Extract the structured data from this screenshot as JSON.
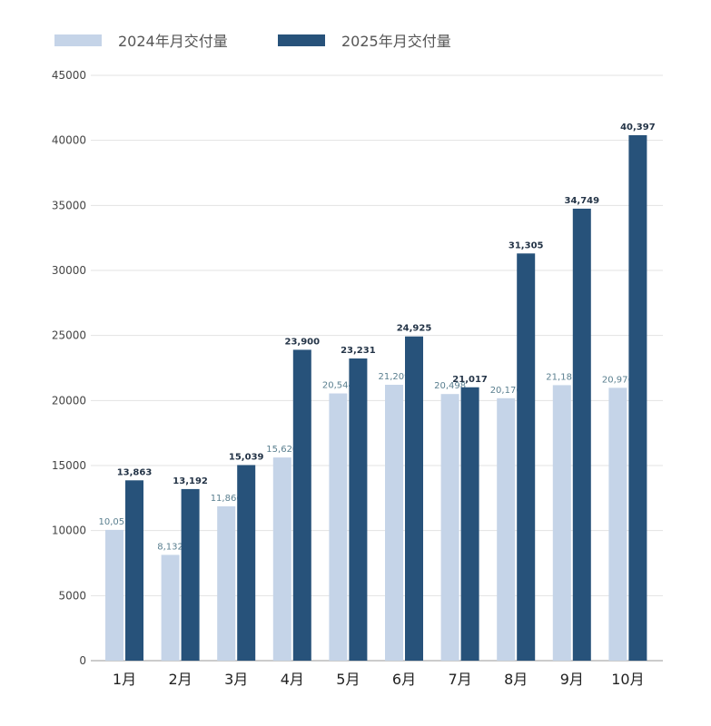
{
  "chart_data": {
    "type": "bar",
    "title": "",
    "xlabel": "",
    "ylabel": "",
    "categories": [
      "1月",
      "2月",
      "3月",
      "4月",
      "5月",
      "6月",
      "7月",
      "8月",
      "9月",
      "10月"
    ],
    "series": [
      {
        "name": "2024年月交付量",
        "color": "#c5d4e8",
        "label_color": "#5a7f8f",
        "values": [
          10055,
          8132,
          11866,
          15620,
          20544,
          21209,
          20498,
          20176,
          21181,
          20976
        ],
        "labels": [
          "10,055",
          "8,132",
          "11,866",
          "15,620",
          "20,544",
          "21,209",
          "20,498",
          "20,176",
          "21,181",
          "20,976"
        ]
      },
      {
        "name": "2025年月交付量",
        "color": "#27527a",
        "label_color": "#243447",
        "values": [
          13863,
          13192,
          15039,
          23900,
          23231,
          24925,
          21017,
          31305,
          34749,
          40397
        ],
        "labels": [
          "13,863",
          "13,192",
          "15,039",
          "23,900",
          "23,231",
          "24,925",
          "21,017",
          "31,305",
          "34,749",
          "40,397"
        ]
      }
    ],
    "ylim": [
      0,
      45000
    ],
    "yticks": [
      0,
      5000,
      10000,
      15000,
      20000,
      25000,
      30000,
      35000,
      40000,
      45000
    ],
    "ytick_labels": [
      "0",
      "5000",
      "10000",
      "15000",
      "20000",
      "25000",
      "30000",
      "35000",
      "40000",
      "45000"
    ],
    "grid": true,
    "legend_position": "top-left"
  }
}
